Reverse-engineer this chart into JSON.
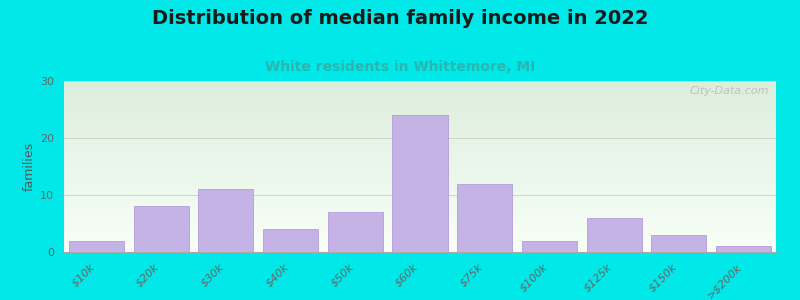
{
  "title": "Distribution of median family income in 2022",
  "subtitle": "White residents in Whittemore, MI",
  "categories": [
    "$10k",
    "$20k",
    "$30k",
    "$40k",
    "$50k",
    "$60k",
    "$75k",
    "$100k",
    "$125k",
    "$150k",
    ">$200k"
  ],
  "values": [
    2,
    8,
    11,
    4,
    7,
    24,
    12,
    2,
    6,
    3,
    1
  ],
  "bar_color": "#c5b3e6",
  "bar_edge_color": "#b39ddb",
  "ylabel": "families",
  "ylim": [
    0,
    30
  ],
  "yticks": [
    0,
    10,
    20,
    30
  ],
  "background_color": "#00e8e8",
  "plot_bg_top": "#ddeedd",
  "plot_bg_bottom": "#f8fff8",
  "title_fontsize": 14,
  "subtitle_fontsize": 10,
  "subtitle_color": "#2ab5b0",
  "watermark": "City-Data.com",
  "grid_color": "#cccccc",
  "axis_label_color": "#555555",
  "tick_label_color": "#666666"
}
